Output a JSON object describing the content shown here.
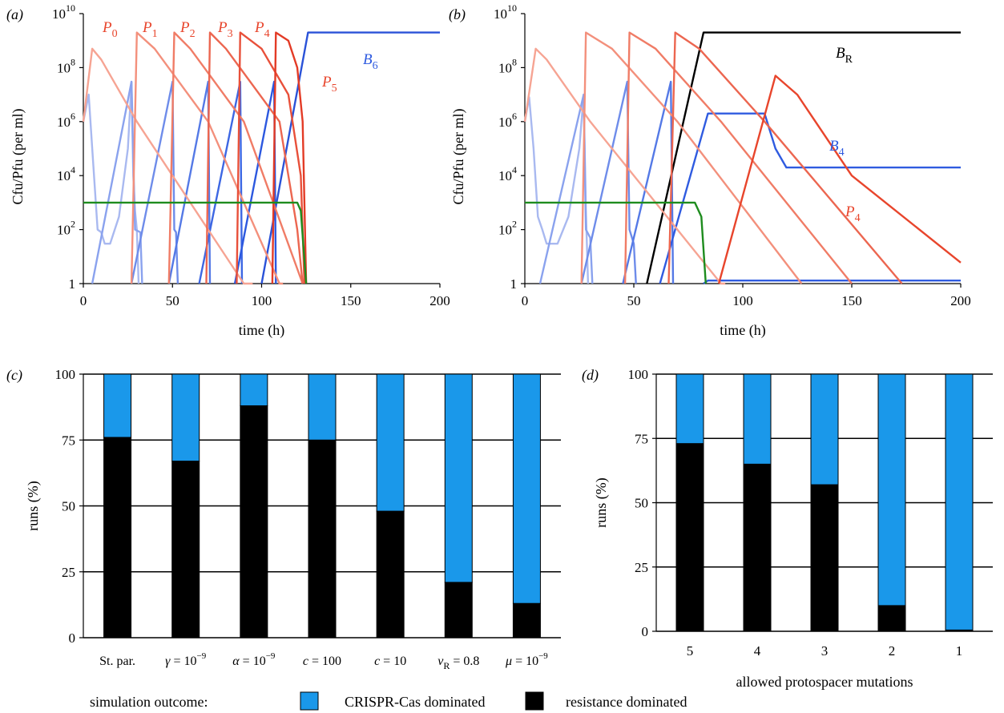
{
  "chart_data": [
    {
      "panel": "(a)",
      "type": "line",
      "xlabel": "time (h)",
      "ylabel": "Cfu/Pfu (per ml)",
      "xlim": [
        0,
        200
      ],
      "ylim": [
        1,
        10000000000
      ],
      "yscale": "log",
      "xticks": [
        "0",
        "50",
        "100",
        "150",
        "200"
      ],
      "yticks": [
        {
          "base": "1",
          "exp": ""
        },
        {
          "base": "10",
          "exp": "2"
        },
        {
          "base": "10",
          "exp": "4"
        },
        {
          "base": "10",
          "exp": "6"
        },
        {
          "base": "10",
          "exp": "8"
        },
        {
          "base": "10",
          "exp": "10"
        }
      ],
      "labels": [
        {
          "name": "P",
          "sub": "0",
          "color": "#e8452c"
        },
        {
          "name": "P",
          "sub": "1",
          "color": "#e8452c"
        },
        {
          "name": "P",
          "sub": "2",
          "color": "#e8452c"
        },
        {
          "name": "P",
          "sub": "3",
          "color": "#e8452c"
        },
        {
          "name": "P",
          "sub": "4",
          "color": "#e8452c"
        },
        {
          "name": "P",
          "sub": "5",
          "color": "#e8452c"
        },
        {
          "name": "B",
          "sub": "6",
          "color": "#2f5be0"
        }
      ],
      "series": [
        {
          "color": "#a9b9f0",
          "points": [
            [
              0,
              1000000
            ],
            [
              3,
              10000000
            ],
            [
              5,
              100000
            ],
            [
              8,
              100
            ],
            [
              10,
              80
            ],
            [
              12,
              30
            ],
            [
              15,
              30
            ],
            [
              20,
              300
            ],
            [
              25,
              100000
            ],
            [
              27,
              30000000
            ],
            [
              28,
              10000
            ],
            [
              29,
              500
            ],
            [
              30,
              100
            ],
            [
              31,
              1
            ]
          ]
        },
        {
          "color": "#8aa2ee",
          "points": [
            [
              5,
              1
            ],
            [
              27,
              30000000
            ],
            [
              29,
              100
            ],
            [
              32,
              80
            ],
            [
              33,
              1
            ]
          ]
        },
        {
          "color": "#6e8cea",
          "points": [
            [
              27,
              1
            ],
            [
              50,
              30000000
            ],
            [
              51,
              100
            ],
            [
              52,
              80
            ],
            [
              53,
              1
            ]
          ]
        },
        {
          "color": "#5479e6",
          "points": [
            [
              48,
              1
            ],
            [
              70,
              30000000
            ],
            [
              71,
              1
            ]
          ]
        },
        {
          "color": "#3d67e3",
          "points": [
            [
              65,
              1
            ],
            [
              88,
              30000000
            ],
            [
              89,
              1
            ]
          ]
        },
        {
          "color": "#2c58df",
          "points": [
            [
              85,
              1
            ],
            [
              107,
              30000000
            ],
            [
              108,
              1
            ]
          ]
        },
        {
          "color": "#2a52d8",
          "points": [
            [
              100,
              1
            ],
            [
              126,
              2000000000
            ],
            [
              200,
              2000000000
            ]
          ]
        },
        {
          "color": "#f6a493",
          "points": [
            [
              0,
              1000000
            ],
            [
              5,
              500000000
            ],
            [
              10,
              200000000
            ],
            [
              30,
              1000000
            ],
            [
              60,
              1000
            ],
            [
              90,
              1
            ],
            [
              95,
              1
            ]
          ]
        },
        {
          "color": "#f3907c",
          "points": [
            [
              27,
              1
            ],
            [
              30,
              2000000000
            ],
            [
              40,
              500000000
            ],
            [
              70,
              1000000
            ],
            [
              110,
              1
            ],
            [
              112,
              1
            ]
          ]
        },
        {
          "color": "#f07c66",
          "points": [
            [
              48,
              1
            ],
            [
              51,
              2000000000
            ],
            [
              60,
              500000000
            ],
            [
              90,
              1000000
            ],
            [
              123,
              1
            ]
          ]
        },
        {
          "color": "#ec6650",
          "points": [
            [
              69,
              1
            ],
            [
              71,
              2000000000
            ],
            [
              80,
              500000000
            ],
            [
              110,
              1000000
            ],
            [
              120,
              100
            ],
            [
              123,
              1
            ]
          ]
        },
        {
          "color": "#e8503a",
          "points": [
            [
              86,
              1
            ],
            [
              88,
              2000000000
            ],
            [
              100,
              500000000
            ],
            [
              115,
              10000000
            ],
            [
              122,
              10000
            ],
            [
              124,
              1
            ]
          ]
        },
        {
          "color": "#e33b26",
          "points": [
            [
              106,
              1
            ],
            [
              108,
              2000000000
            ],
            [
              115,
              1000000000
            ],
            [
              120,
              100000000
            ],
            [
              123,
              1000000
            ],
            [
              125,
              1
            ]
          ]
        },
        {
          "color": "#1e8c1e",
          "points": [
            [
              0,
              1000
            ],
            [
              120,
              1000
            ],
            [
              122,
              500
            ],
            [
              125,
              1
            ]
          ]
        }
      ]
    },
    {
      "panel": "(b)",
      "type": "line",
      "xlabel": "time (h)",
      "ylabel": "Cfu/Pfu (per ml)",
      "xlim": [
        0,
        200
      ],
      "ylim": [
        1,
        10000000000
      ],
      "yscale": "log",
      "xticks": [
        "0",
        "50",
        "100",
        "150",
        "200"
      ],
      "yticks": [
        {
          "base": "1",
          "exp": ""
        },
        {
          "base": "10",
          "exp": "2"
        },
        {
          "base": "10",
          "exp": "4"
        },
        {
          "base": "10",
          "exp": "6"
        },
        {
          "base": "10",
          "exp": "8"
        },
        {
          "base": "10",
          "exp": "10"
        }
      ],
      "labels": [
        {
          "name": "B",
          "sub": "R",
          "color": "#000000"
        },
        {
          "name": "B",
          "sub": "4",
          "color": "#2f5be0"
        },
        {
          "name": "P",
          "sub": "4",
          "color": "#e8452c"
        }
      ],
      "series": [
        {
          "color": "#a9b9f0",
          "points": [
            [
              0,
              1000000
            ],
            [
              2,
              8000000
            ],
            [
              4,
              100000
            ],
            [
              6,
              300
            ],
            [
              8,
              100
            ],
            [
              10,
              30
            ],
            [
              15,
              30
            ],
            [
              20,
              300
            ],
            [
              25,
              100000
            ],
            [
              27,
              10000000
            ],
            [
              28,
              500
            ],
            [
              29,
              1
            ]
          ]
        },
        {
          "color": "#8aa2ee",
          "points": [
            [
              7,
              1
            ],
            [
              27,
              10000000
            ],
            [
              28,
              100
            ],
            [
              30,
              50
            ],
            [
              31,
              1
            ]
          ]
        },
        {
          "color": "#6e8cea",
          "points": [
            [
              26,
              1
            ],
            [
              47,
              30000000
            ],
            [
              48,
              100
            ],
            [
              50,
              30
            ],
            [
              51,
              1
            ]
          ]
        },
        {
          "color": "#5479e6",
          "points": [
            [
              45,
              1
            ],
            [
              67,
              30000000
            ],
            [
              68,
              1
            ]
          ]
        },
        {
          "color": "#2f5be0",
          "points": [
            [
              62,
              1
            ],
            [
              84,
              2000000
            ],
            [
              110,
              2000000
            ],
            [
              115,
              100000
            ],
            [
              120,
              20000
            ],
            [
              200,
              20000
            ]
          ]
        },
        {
          "color": "#2f5be0",
          "points": [
            [
              82,
              1
            ],
            [
              84,
              1.3
            ],
            [
              200,
              1.3
            ]
          ]
        },
        {
          "color": "#000000",
          "points": [
            [
              56,
              1
            ],
            [
              82,
              2000000000
            ],
            [
              200,
              2000000000
            ]
          ]
        },
        {
          "color": "#f6a493",
          "points": [
            [
              0,
              1000000
            ],
            [
              5,
              500000000
            ],
            [
              10,
              200000000
            ],
            [
              30,
              1000000
            ],
            [
              60,
              1000
            ],
            [
              90,
              1
            ],
            [
              92,
              1
            ]
          ]
        },
        {
          "color": "#f3907c",
          "points": [
            [
              26,
              1
            ],
            [
              28,
              2000000000
            ],
            [
              40,
              500000000
            ],
            [
              70,
              1000000
            ],
            [
              127,
              1
            ]
          ]
        },
        {
          "color": "#f07c66",
          "points": [
            [
              46,
              1
            ],
            [
              48,
              2000000000
            ],
            [
              60,
              500000000
            ],
            [
              90,
              1000000
            ],
            [
              150,
              1
            ]
          ]
        },
        {
          "color": "#ec6650",
          "points": [
            [
              66,
              1
            ],
            [
              69,
              2000000000
            ],
            [
              80,
              500000000
            ],
            [
              110,
              1000000
            ],
            [
              173,
              1
            ]
          ]
        },
        {
          "color": "#e8452c",
          "points": [
            [
              89,
              1
            ],
            [
              115,
              50000000
            ],
            [
              125,
              10000000
            ],
            [
              150,
              10000
            ],
            [
              200,
              6
            ]
          ]
        },
        {
          "color": "#1e8c1e",
          "points": [
            [
              0,
              1000
            ],
            [
              78,
              1000
            ],
            [
              81,
              300
            ],
            [
              83,
              1
            ]
          ]
        }
      ]
    },
    {
      "panel": "(c)",
      "type": "bar",
      "stacked": true,
      "xlabel": "",
      "ylabel": "runs (%)",
      "ylim": [
        0,
        100
      ],
      "yticks": [
        "0",
        "25",
        "50",
        "75",
        "100"
      ],
      "grid": true,
      "categories": [
        {
          "pre": "St. par.",
          "sym": "",
          "sub": "",
          "post": "",
          "exp": ""
        },
        {
          "pre": "",
          "sym": "γ",
          "sub": "",
          "post": " = 10",
          "exp": "−9"
        },
        {
          "pre": "",
          "sym": "α",
          "sub": "",
          "post": " = 10",
          "exp": "−9"
        },
        {
          "pre": "",
          "sym": "c",
          "sub": "",
          "post": " = 100",
          "exp": ""
        },
        {
          "pre": "",
          "sym": "c",
          "sub": "",
          "post": " = 10",
          "exp": ""
        },
        {
          "pre": "",
          "sym": "v",
          "sub": "R",
          "post": " = 0.8",
          "exp": ""
        },
        {
          "pre": "",
          "sym": "μ",
          "sub": "",
          "post": " = 10",
          "exp": "−9"
        }
      ],
      "series": [
        {
          "name": "resistance dominated",
          "color": "#000000",
          "values": [
            76,
            67,
            88,
            75,
            48,
            21,
            13
          ]
        },
        {
          "name": "CRISPR-Cas dominated",
          "color": "#1a98ea",
          "values": [
            24,
            33,
            12,
            25,
            52,
            79,
            87
          ]
        }
      ]
    },
    {
      "panel": "(d)",
      "type": "bar",
      "stacked": true,
      "xlabel": "allowed protospacer mutations",
      "ylabel": "runs (%)",
      "ylim": [
        0,
        100
      ],
      "yticks": [
        "0",
        "25",
        "50",
        "75",
        "100"
      ],
      "grid": true,
      "categories": [
        "5",
        "4",
        "3",
        "2",
        "1"
      ],
      "series": [
        {
          "name": "resistance dominated",
          "color": "#000000",
          "values": [
            73,
            65,
            57,
            10,
            0.5
          ]
        },
        {
          "name": "CRISPR-Cas dominated",
          "color": "#1a98ea",
          "values": [
            27,
            35,
            43,
            90,
            99.5
          ]
        }
      ]
    }
  ],
  "legend": {
    "title": "simulation outcome:",
    "items": [
      {
        "label": "CRISPR-Cas dominated",
        "color": "#1a98ea"
      },
      {
        "label": "resistance dominated",
        "color": "#000000"
      }
    ]
  }
}
